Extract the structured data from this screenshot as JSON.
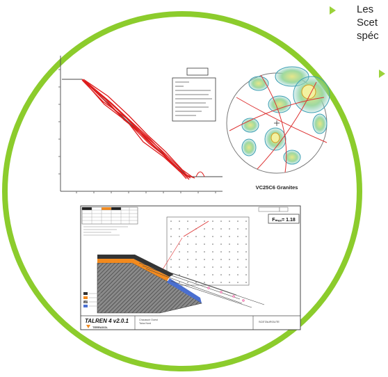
{
  "bullets": [
    {
      "lines": [
        "Les",
        "Scet",
        "spéc"
      ]
    }
  ],
  "stereonet": {
    "caption": "VC25C6 Granites"
  },
  "talren": {
    "logo": "TALREN 4 v2.0.1",
    "brand": "TERRASOL",
    "fos": "Fₘₐₓ= 1.18",
    "client": "SCETAUROUTE",
    "project_lines": [
      "Chaussoir Ouest",
      "Talus Nord"
    ],
    "colors": {
      "accent": "#8ccc2c",
      "orange": "#f28a1e",
      "hatch": "#606060"
    }
  }
}
